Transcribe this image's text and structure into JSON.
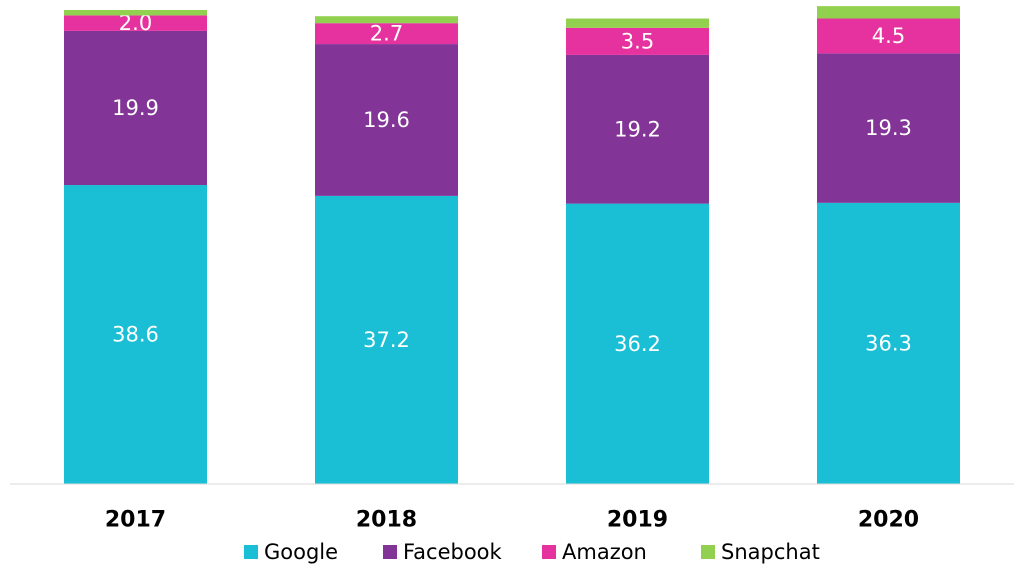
{
  "chart_data": {
    "type": "bar",
    "stacked": true,
    "categories": [
      "2017",
      "2018",
      "2019",
      "2020"
    ],
    "series": [
      {
        "name": "Google",
        "color": "#1bbfd5",
        "values": [
          38.6,
          37.2,
          36.2,
          36.3
        ],
        "labels": [
          "38.6",
          "37.2",
          "36.2",
          "36.3"
        ]
      },
      {
        "name": "Facebook",
        "color": "#833597",
        "values": [
          19.9,
          19.6,
          19.2,
          19.3
        ],
        "labels": [
          "19.9",
          "19.6",
          "19.2",
          "19.3"
        ]
      },
      {
        "name": "Amazon",
        "color": "#e6329e",
        "values": [
          2.0,
          2.7,
          3.5,
          4.5
        ],
        "labels": [
          "2.0",
          "2.7",
          "3.5",
          "4.5"
        ]
      },
      {
        "name": "Snapchat",
        "color": "#92d050",
        "values": [
          0.7,
          0.9,
          1.2,
          1.6
        ],
        "labels": [
          "",
          "",
          "",
          ""
        ]
      }
    ],
    "ylim": [
      0,
      61.2
    ],
    "grid": false,
    "legend": "bottom-center",
    "title": "",
    "xlabel": "",
    "ylabel": ""
  }
}
